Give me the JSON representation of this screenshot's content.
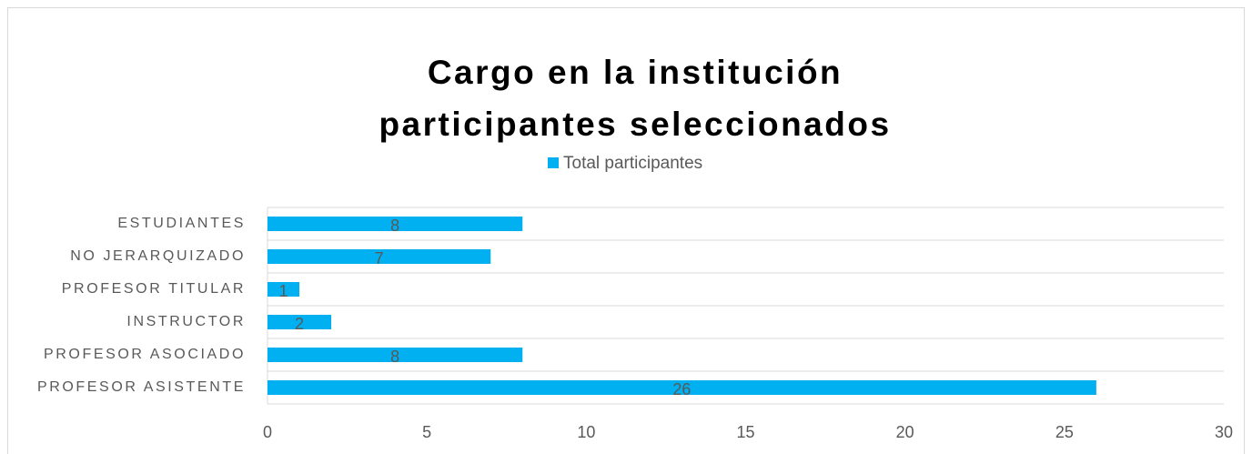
{
  "chart_data": {
    "type": "bar",
    "orientation": "horizontal",
    "title": [
      "Cargo en la institución",
      "participantes seleccionados"
    ],
    "categories": [
      "ESTUDIANTES",
      "NO JERARQUIZADO",
      "PROFESOR TITULAR",
      "INSTRUCTOR",
      "PROFESOR ASOCIADO",
      "PROFESOR ASISTENTE"
    ],
    "series": [
      {
        "name": "Total participantes",
        "color": "#00b0f0",
        "values": [
          8,
          7,
          1,
          2,
          8,
          26
        ]
      }
    ],
    "xlim": [
      0,
      30
    ],
    "xticks": [
      0,
      5,
      10,
      15,
      20,
      25,
      30
    ],
    "grid": false,
    "legend": "top"
  }
}
